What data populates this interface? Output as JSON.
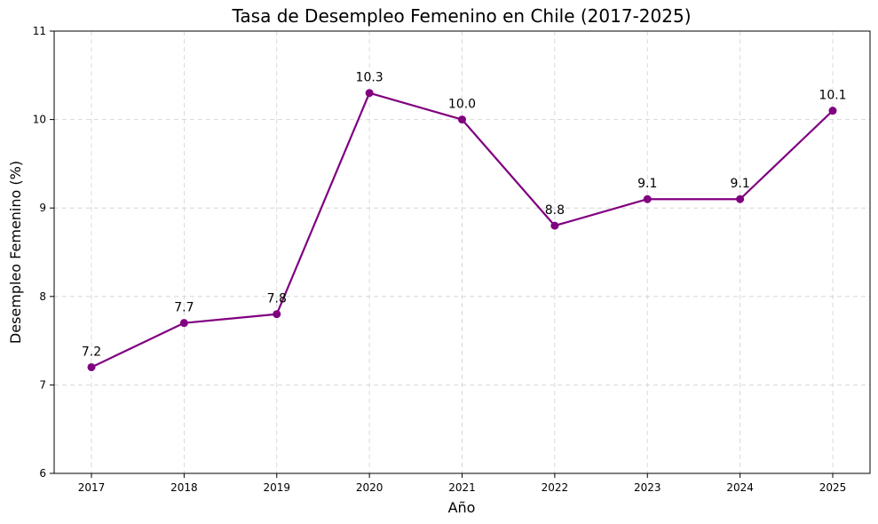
{
  "chart_data": {
    "type": "line",
    "title": "Tasa de Desempleo Femenino en Chile (2017-2025)",
    "xlabel": "Año",
    "ylabel": "Desempleo Femenino (%)",
    "x": [
      "2017",
      "2018",
      "2019",
      "2020",
      "2021",
      "2022",
      "2023",
      "2024",
      "2025"
    ],
    "series": [
      {
        "values": [
          7.2,
          7.7,
          7.8,
          10.3,
          10.0,
          8.8,
          9.1,
          9.1,
          10.1
        ],
        "labels": [
          "7.2",
          "7.7",
          "7.8",
          "10.3",
          "10.0",
          "8.8",
          "9.1",
          "9.1",
          "10.1"
        ],
        "color": "#800080"
      }
    ],
    "ylim": [
      6,
      11
    ],
    "yticks": [
      "6",
      "7",
      "8",
      "9",
      "10",
      "11"
    ],
    "grid": true,
    "marker": "circle"
  }
}
